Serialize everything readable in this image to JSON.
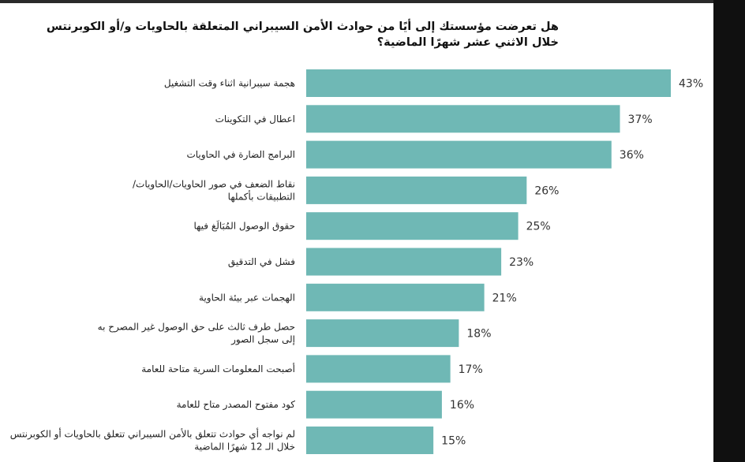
{
  "title": "هل تعرضت مؤسستك إلى أيًا من حوادث الأمن السيبراني المتعلقة بالحاويات و/أو الكوبرنتس خلال الاثني عشر شهرًا الماضية؟",
  "chart_data": {
    "type": "bar",
    "orientation": "horizontal",
    "title": "هل تعرضت مؤسستك إلى أيًا من حوادث الأمن السيبراني المتعلقة بالحاويات و/أو الكوبرنتس خلال الاثني عشر شهرًا الماضية؟",
    "categories": [
      [
        "هجمة سيبرانية اثناء وقت التشغيل"
      ],
      [
        "اعطال في التكوينات"
      ],
      [
        "البرامج الضارة في الحاويات"
      ],
      [
        "نقاط الضعف في صور الحاويات/الحاويات/",
        "التطبيقات بأكملها"
      ],
      [
        "حقوق الوصول المُبَالَغ فيها"
      ],
      [
        "فشل في التدقيق"
      ],
      [
        "الهجمات عبر بيئة الحاوية"
      ],
      [
        "حصل طرف ثالث على حق الوصول غير المصرح به",
        "إلى سجل الصور"
      ],
      [
        "أصبحت المعلومات السرية متاحة للعامة"
      ],
      [
        "كود مفتوح المصدر متاح للعامة"
      ],
      [
        "لم نواجه أي حوادث تتعلق بالأمن السيبراني تتعلق بالحاويات أو الكوبرنتس",
        "خلال الـ 12 شهرًا الماضية"
      ]
    ],
    "values": [
      43,
      37,
      36,
      26,
      25,
      23,
      21,
      18,
      17,
      16,
      15
    ],
    "value_suffix": "%",
    "xlim": [
      0,
      43
    ],
    "grid": false,
    "legend": "none",
    "bar_color": "#6fb8b5"
  }
}
